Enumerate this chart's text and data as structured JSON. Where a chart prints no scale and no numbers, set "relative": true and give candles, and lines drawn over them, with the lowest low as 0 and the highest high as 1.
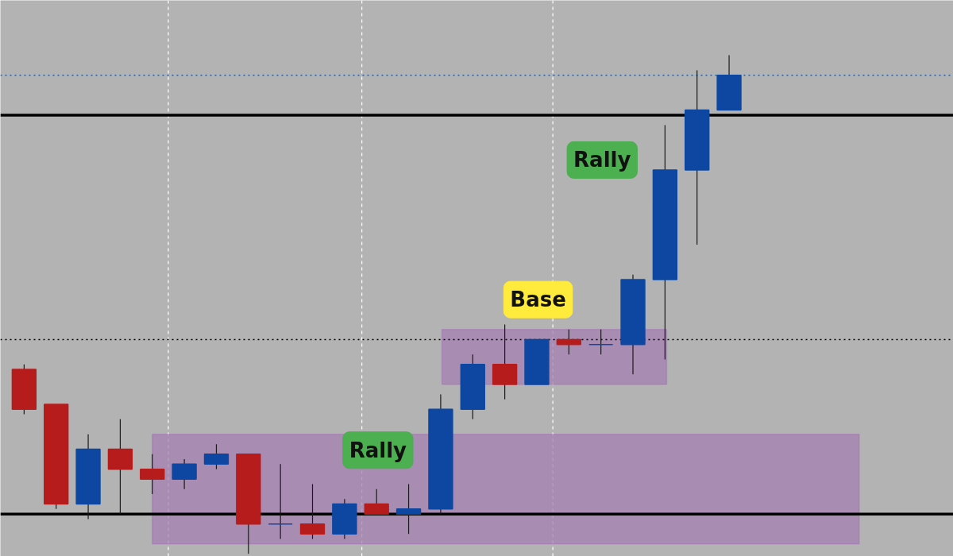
{
  "chart_data": {
    "type": "candlestick",
    "relative": true,
    "categories": [
      null,
      null,
      null,
      null,
      null,
      null,
      null,
      null,
      null,
      null,
      null,
      null,
      null,
      null,
      null,
      null,
      null,
      null,
      null,
      null,
      null,
      null,
      null
    ],
    "ohlc": [
      [
        0.37,
        0.38,
        0.28,
        0.29
      ],
      [
        0.3,
        0.3,
        0.09,
        0.1
      ],
      [
        0.1,
        0.24,
        0.07,
        0.21
      ],
      [
        0.21,
        0.27,
        0.08,
        0.17
      ],
      [
        0.17,
        0.2,
        0.12,
        0.15
      ],
      [
        0.15,
        0.19,
        0.13,
        0.18
      ],
      [
        0.18,
        0.22,
        0.17,
        0.2
      ],
      [
        0.2,
        0.2,
        0.0,
        0.06
      ],
      [
        0.06,
        0.18,
        0.03,
        0.06
      ],
      [
        0.06,
        0.14,
        0.03,
        0.04
      ],
      [
        0.04,
        0.11,
        0.03,
        0.1
      ],
      [
        0.1,
        0.13,
        0.08,
        0.08
      ],
      [
        0.08,
        0.14,
        0.04,
        0.09
      ],
      [
        0.09,
        0.32,
        0.08,
        0.29
      ],
      [
        0.29,
        0.4,
        0.27,
        0.38
      ],
      [
        0.38,
        0.46,
        0.31,
        0.34
      ],
      [
        0.34,
        0.43,
        0.34,
        0.43
      ],
      [
        0.43,
        0.45,
        0.4,
        0.42
      ],
      [
        0.42,
        0.45,
        0.4,
        0.42
      ],
      [
        0.42,
        0.56,
        0.36,
        0.55
      ],
      [
        0.55,
        0.86,
        0.39,
        0.77
      ],
      [
        0.77,
        0.97,
        0.62,
        0.89
      ],
      [
        0.89,
        1.0,
        0.89,
        0.96
      ]
    ],
    "colors": [
      "#b71c1c",
      "#b71c1c",
      "#0d47a1",
      "#b71c1c",
      "#b71c1c",
      "#0d47a1",
      "#0d47a1",
      "#b71c1c",
      "#0d47a1",
      "#b71c1c",
      "#0d47a1",
      "#b71c1c",
      "#0d47a1",
      "#0d47a1",
      "#0d47a1",
      "#b71c1c",
      "#0d47a1",
      "#b71c1c",
      "#0d47a1",
      "#0d47a1",
      "#0d47a1",
      "#0d47a1",
      "#0d47a1"
    ],
    "annotations": [
      "Rally",
      "Base",
      "Rally"
    ],
    "ref_lines": [
      {
        "axis": "y",
        "value": 0.88,
        "label": null,
        "color": "#000000",
        "line_style": "solid"
      },
      {
        "axis": "y",
        "value": 0.08,
        "label": null,
        "color": "#000000",
        "line_style": "solid"
      },
      {
        "axis": "y",
        "value": 0.96,
        "label": null,
        "color": "#1f5fa8",
        "line_style": "dotted"
      },
      {
        "axis": "y",
        "value": 0.43,
        "label": null,
        "color": "#000000",
        "line_style": "dotted"
      }
    ],
    "bands": [
      {
        "axis": "y",
        "from": 0.34,
        "to": 0.45,
        "label": null,
        "color": "#a57fb0"
      },
      {
        "axis": "y",
        "from": 0.02,
        "to": 0.24,
        "label": null,
        "color": "#a57fb0"
      }
    ],
    "grid": false
  }
}
